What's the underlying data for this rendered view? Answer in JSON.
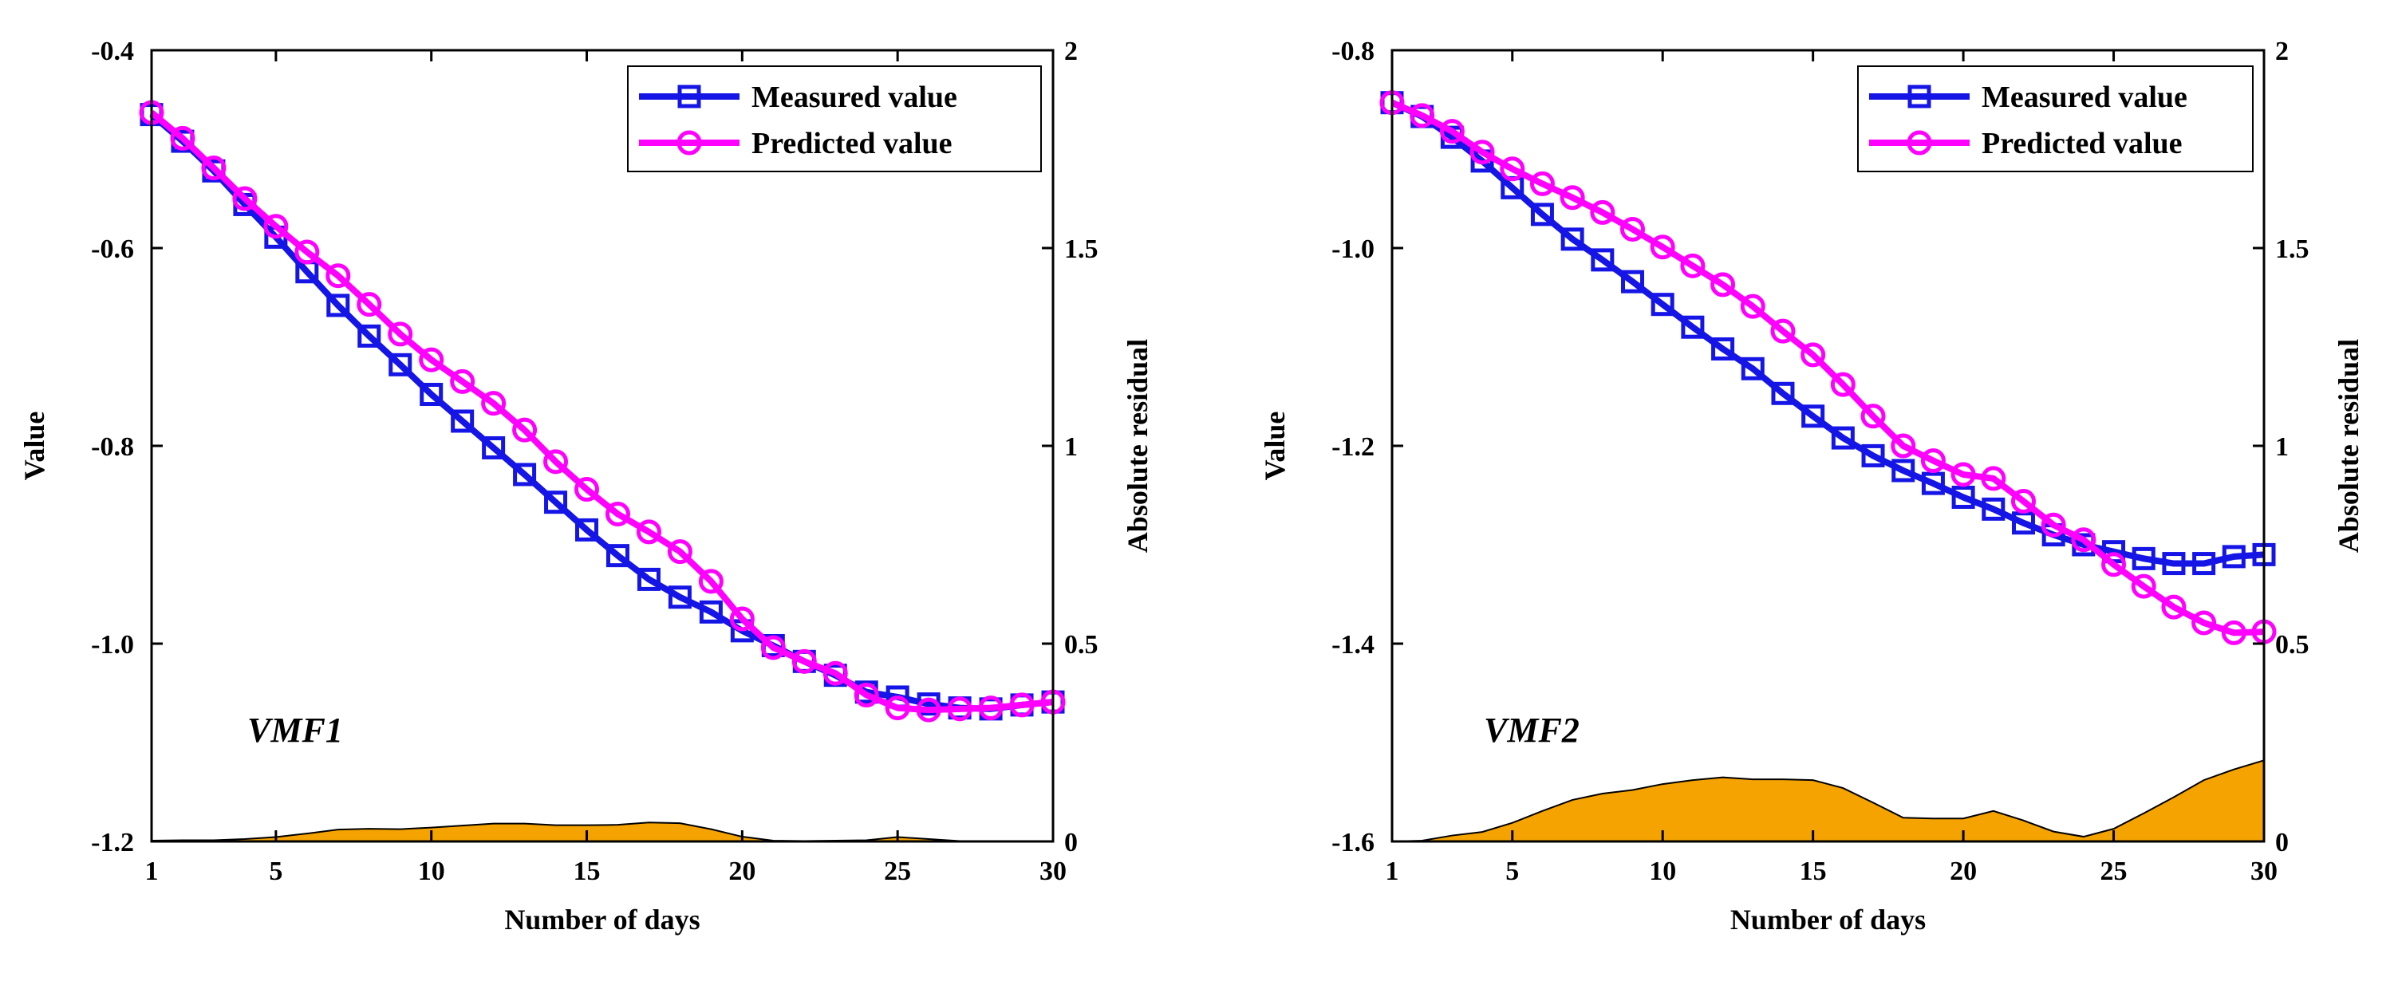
{
  "chart_data": [
    {
      "type": "line",
      "annotation": "VMF1",
      "xlabel": "Number of days",
      "ylabel": "Value",
      "y2label": "Absolute residual",
      "xlim": [
        1,
        30
      ],
      "ylim": [
        -1.2,
        -0.4
      ],
      "y2lim": [
        0,
        2
      ],
      "xticks": [
        "1",
        "5",
        "10",
        "15",
        "20",
        "25",
        "30"
      ],
      "yticks": [
        "-1.2",
        "-1.0",
        "-0.8",
        "-0.6",
        "-0.4"
      ],
      "y2ticks": [
        "0",
        "0.5",
        "1",
        "1.5",
        "2"
      ],
      "grid": false,
      "legend_position": "top-right",
      "x": [
        1,
        2,
        3,
        4,
        5,
        6,
        7,
        8,
        9,
        10,
        11,
        12,
        13,
        14,
        15,
        16,
        17,
        18,
        19,
        20,
        21,
        22,
        23,
        24,
        25,
        26,
        27,
        28,
        29,
        30
      ],
      "series": [
        {
          "name": "Measured value",
          "color": "#1515e6",
          "marker": "square",
          "values": [
            -0.465,
            -0.492,
            -0.522,
            -0.556,
            -0.589,
            -0.624,
            -0.658,
            -0.689,
            -0.718,
            -0.748,
            -0.775,
            -0.802,
            -0.829,
            -0.857,
            -0.885,
            -0.911,
            -0.935,
            -0.953,
            -0.968,
            -0.987,
            -1.002,
            -1.018,
            -1.032,
            -1.049,
            -1.054,
            -1.061,
            -1.065,
            -1.066,
            -1.062,
            -1.059
          ]
        },
        {
          "name": "Predicted value",
          "color": "#ff00ff",
          "marker": "circle",
          "values": [
            -0.463,
            -0.489,
            -0.519,
            -0.55,
            -0.578,
            -0.604,
            -0.628,
            -0.657,
            -0.687,
            -0.713,
            -0.735,
            -0.757,
            -0.784,
            -0.816,
            -0.844,
            -0.869,
            -0.887,
            -0.907,
            -0.937,
            -0.975,
            -1.004,
            -1.018,
            -1.03,
            -1.052,
            -1.065,
            -1.067,
            -1.066,
            -1.065,
            -1.062,
            -1.059
          ]
        }
      ],
      "residual": {
        "color": "#f5a300",
        "values": [
          0.002,
          0.003,
          0.003,
          0.006,
          0.011,
          0.02,
          0.03,
          0.032,
          0.031,
          0.035,
          0.04,
          0.045,
          0.045,
          0.041,
          0.041,
          0.042,
          0.048,
          0.046,
          0.031,
          0.012,
          0.002,
          0.001,
          0.002,
          0.003,
          0.011,
          0.006,
          0.001,
          0.0,
          0.0,
          0.0
        ]
      }
    },
    {
      "type": "line",
      "annotation": "VMF2",
      "xlabel": "Number of days",
      "ylabel": "Value",
      "y2label": "Absolute residual",
      "xlim": [
        1,
        30
      ],
      "ylim": [
        -1.6,
        -0.8
      ],
      "y2lim": [
        0,
        2
      ],
      "xticks": [
        "1",
        "5",
        "10",
        "15",
        "20",
        "25",
        "30"
      ],
      "yticks": [
        "-1.6",
        "-1.4",
        "-1.2",
        "-1.0",
        "-0.8"
      ],
      "y2ticks": [
        "0",
        "0.5",
        "1",
        "1.5",
        "2"
      ],
      "grid": false,
      "legend_position": "top-right",
      "x": [
        1,
        2,
        3,
        4,
        5,
        6,
        7,
        8,
        9,
        10,
        11,
        12,
        13,
        14,
        15,
        16,
        17,
        18,
        19,
        20,
        21,
        22,
        23,
        24,
        25,
        26,
        27,
        28,
        29,
        30
      ],
      "series": [
        {
          "name": "Measured value",
          "color": "#1515e6",
          "marker": "square",
          "values": [
            -0.853,
            -0.867,
            -0.888,
            -0.912,
            -0.939,
            -0.966,
            -0.991,
            -1.012,
            -1.034,
            -1.057,
            -1.08,
            -1.102,
            -1.122,
            -1.147,
            -1.17,
            -1.192,
            -1.21,
            -1.225,
            -1.238,
            -1.252,
            -1.264,
            -1.278,
            -1.29,
            -1.3,
            -1.307,
            -1.314,
            -1.319,
            -1.319,
            -1.312,
            -1.31
          ]
        },
        {
          "name": "Predicted value",
          "color": "#ff00ff",
          "marker": "circle",
          "values": [
            -0.853,
            -0.866,
            -0.882,
            -0.903,
            -0.92,
            -0.935,
            -0.949,
            -0.964,
            -0.981,
            -0.999,
            -1.018,
            -1.037,
            -1.059,
            -1.084,
            -1.108,
            -1.138,
            -1.17,
            -1.2,
            -1.215,
            -1.229,
            -1.233,
            -1.256,
            -1.28,
            -1.295,
            -1.32,
            -1.342,
            -1.363,
            -1.379,
            -1.389,
            -1.388
          ]
        }
      ],
      "residual": {
        "color": "#f5a300",
        "values": [
          0.0,
          0.002,
          0.015,
          0.024,
          0.047,
          0.077,
          0.105,
          0.121,
          0.13,
          0.145,
          0.155,
          0.162,
          0.157,
          0.157,
          0.155,
          0.135,
          0.098,
          0.06,
          0.058,
          0.058,
          0.077,
          0.053,
          0.025,
          0.012,
          0.032,
          0.071,
          0.112,
          0.155,
          0.182,
          0.205
        ]
      }
    }
  ]
}
